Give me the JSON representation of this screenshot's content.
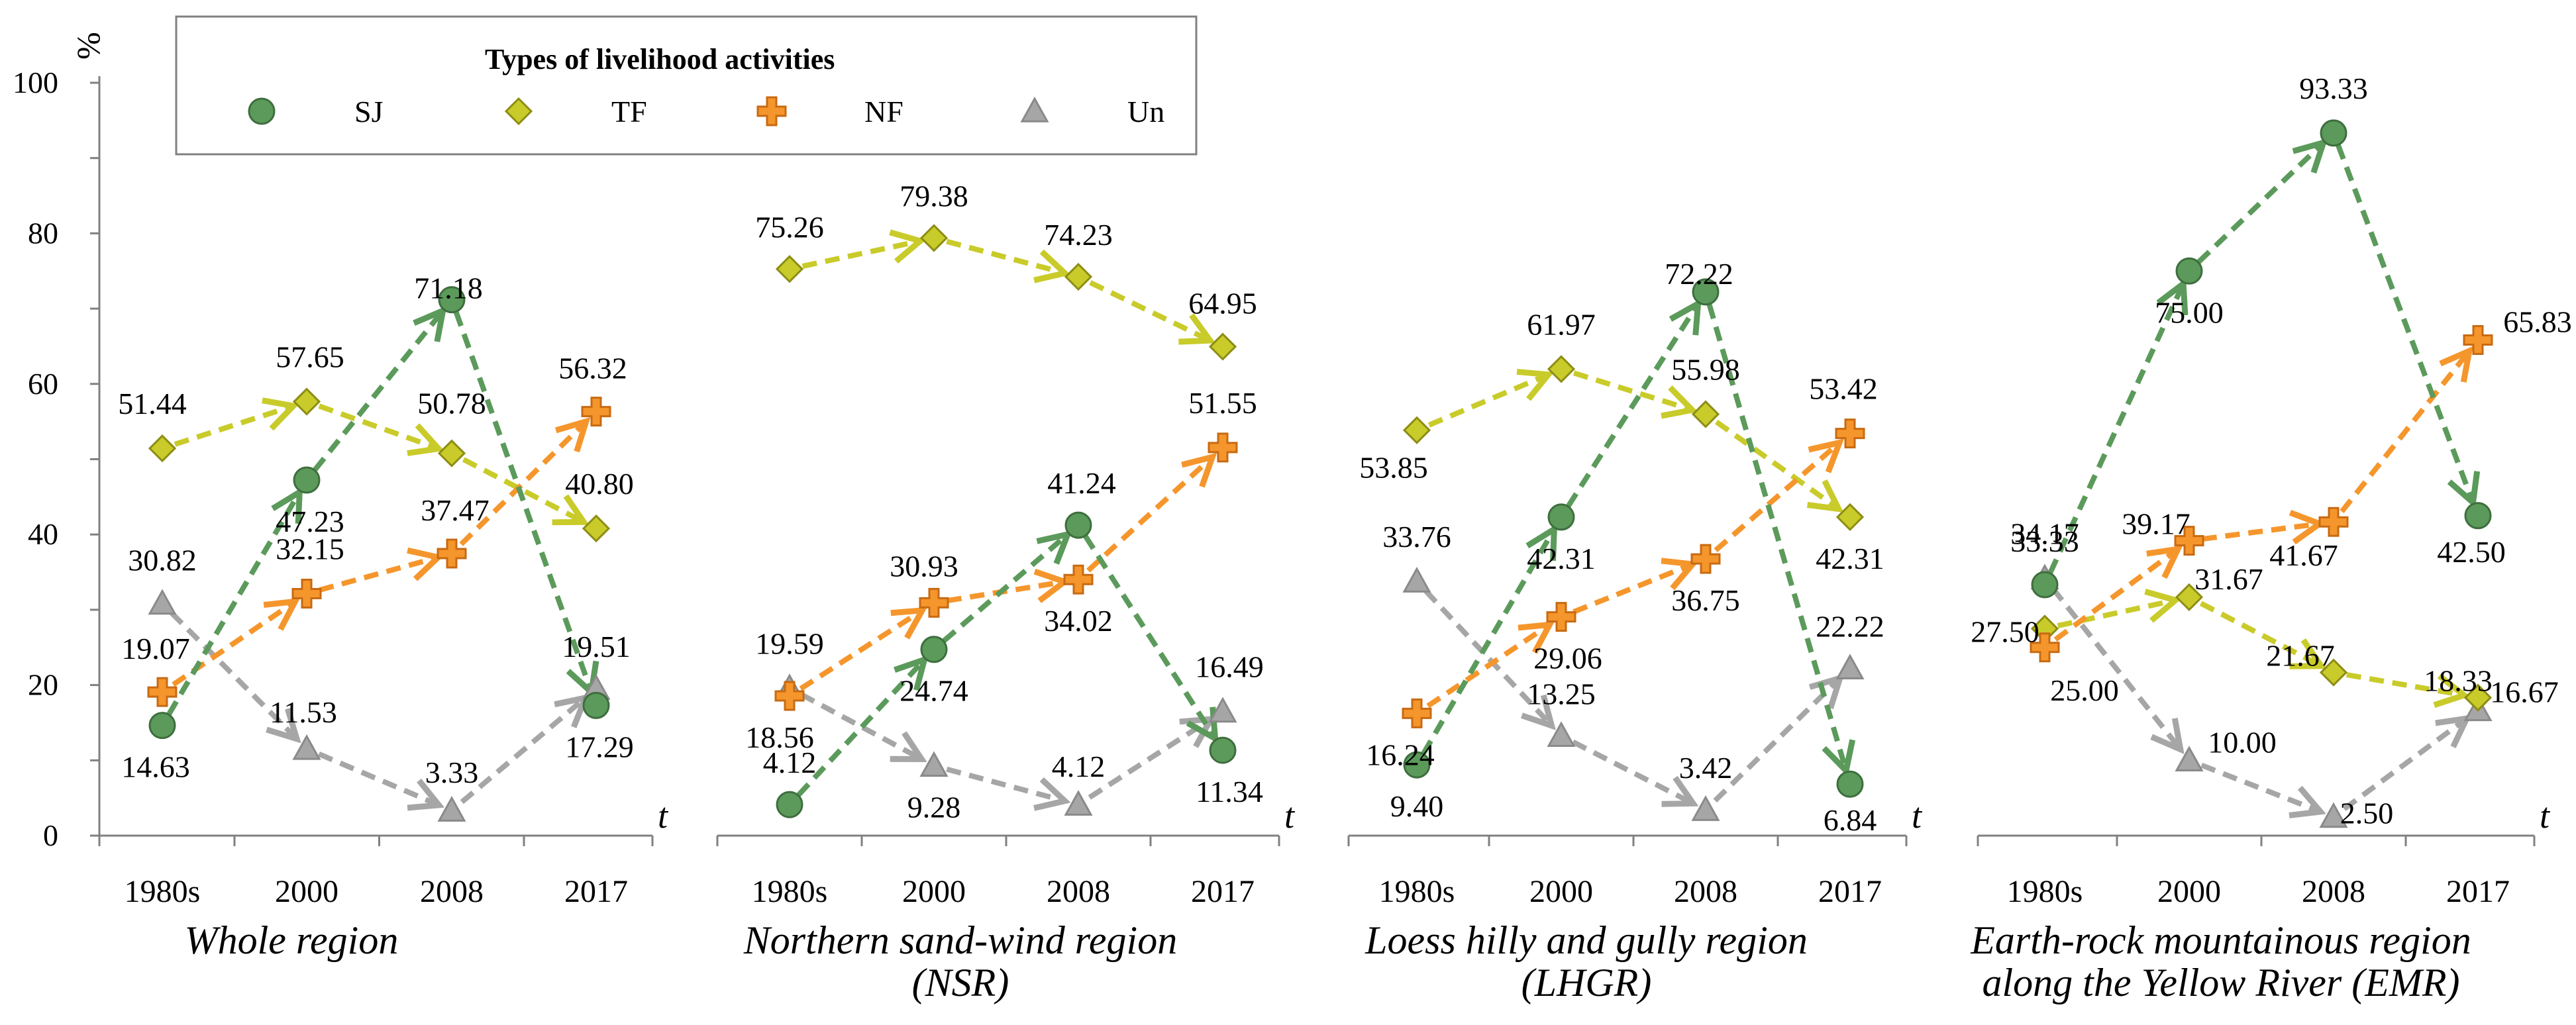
{
  "chart_data": {
    "type": "line",
    "y_unit_label": "%",
    "x_axis_symbol": "t",
    "categories": [
      "1980s",
      "2000",
      "2008",
      "2017"
    ],
    "yticks": [
      "0",
      "20",
      "40",
      "60",
      "80",
      "100"
    ],
    "ylim": [
      0,
      100
    ],
    "legend": {
      "title": "Types of livelihood activities",
      "items": [
        {
          "key": "SJ",
          "label": "SJ",
          "marker": "circle",
          "color": "#5b9a5b"
        },
        {
          "key": "TF",
          "label": "TF",
          "marker": "diamond",
          "color": "#c9cb2a"
        },
        {
          "key": "NF",
          "label": "NF",
          "marker": "plus",
          "color": "#f5962c"
        },
        {
          "key": "Un",
          "label": "Un",
          "marker": "triangle",
          "color": "#a6a6a6"
        }
      ]
    },
    "panels": [
      {
        "title_lines": [
          "Whole region"
        ],
        "series": [
          {
            "key": "SJ",
            "values": [
              14.63,
              47.23,
              71.18,
              17.29
            ],
            "labels": [
              "14.63",
              "47.23",
              "71.18",
              "17.29"
            ]
          },
          {
            "key": "TF",
            "values": [
              51.44,
              57.65,
              50.78,
              40.8
            ],
            "labels": [
              "51.44",
              "57.65",
              "50.78",
              "40.80"
            ]
          },
          {
            "key": "NF",
            "values": [
              19.07,
              32.15,
              37.47,
              56.32
            ],
            "labels": [
              "19.07",
              "32.15",
              "37.47",
              "56.32"
            ]
          },
          {
            "key": "Un",
            "values": [
              30.82,
              11.53,
              3.33,
              19.51
            ],
            "labels": [
              "30.82",
              "11.53",
              "3.33",
              "19.51"
            ]
          }
        ]
      },
      {
        "title_lines": [
          "Northern sand-wind region",
          "(NSR)"
        ],
        "series": [
          {
            "key": "SJ",
            "values": [
              4.12,
              24.74,
              41.24,
              11.34
            ],
            "labels": [
              "4.12",
              "24.74",
              "41.24",
              "11.34"
            ]
          },
          {
            "key": "TF",
            "values": [
              75.26,
              79.38,
              74.23,
              64.95
            ],
            "labels": [
              "75.26",
              "79.38",
              "74.23",
              "64.95"
            ]
          },
          {
            "key": "NF",
            "values": [
              18.56,
              30.93,
              34.02,
              51.55
            ],
            "labels": [
              "18.56",
              "30.93",
              "34.02",
              "51.55"
            ]
          },
          {
            "key": "Un",
            "values": [
              19.59,
              9.28,
              4.12,
              16.49
            ],
            "labels": [
              "19.59",
              "9.28",
              "4.12",
              "16.49"
            ]
          }
        ]
      },
      {
        "title_lines": [
          "Loess hilly and gully region",
          "(LHGR)"
        ],
        "series": [
          {
            "key": "SJ",
            "values": [
              9.4,
              42.31,
              72.22,
              6.84
            ],
            "labels": [
              "9.40",
              "42.31",
              "72.22",
              "6.84"
            ]
          },
          {
            "key": "TF",
            "values": [
              53.85,
              61.97,
              55.98,
              42.31
            ],
            "labels": [
              "53.85",
              "61.97",
              "55.98",
              "42.31"
            ]
          },
          {
            "key": "NF",
            "values": [
              16.24,
              29.06,
              36.75,
              53.42
            ],
            "labels": [
              "16.24",
              "29.06",
              "36.75",
              "53.42"
            ]
          },
          {
            "key": "Un",
            "values": [
              33.76,
              13.25,
              3.42,
              22.22
            ],
            "labels": [
              "33.76",
              "13.25",
              "3.42",
              "22.22"
            ]
          }
        ]
      },
      {
        "title_lines": [
          "Earth-rock mountainous region",
          "along the Yellow River (EMR)"
        ],
        "series": [
          {
            "key": "SJ",
            "values": [
              33.33,
              75.0,
              93.33,
              42.5
            ],
            "labels": [
              "33.33",
              "75.00",
              "93.33",
              "42.50"
            ]
          },
          {
            "key": "TF",
            "values": [
              27.5,
              31.67,
              21.67,
              18.33
            ],
            "labels": [
              "27.50",
              "31.67",
              "21.67",
              "18.33"
            ]
          },
          {
            "key": "NF",
            "values": [
              25.0,
              39.17,
              41.67,
              65.83
            ],
            "labels": [
              "25.00",
              "39.17",
              "41.67",
              "65.83"
            ]
          },
          {
            "key": "Un",
            "values": [
              34.17,
              10.0,
              2.5,
              16.67
            ],
            "labels": [
              "34.17",
              "10.00",
              "2.50",
              "16.67"
            ]
          }
        ]
      }
    ]
  }
}
